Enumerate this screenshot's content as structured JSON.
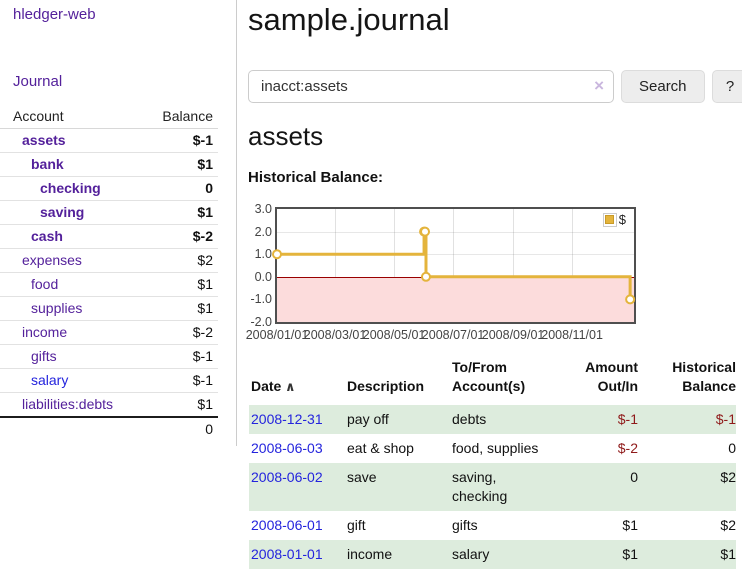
{
  "app": {
    "title": "hledger-web",
    "nav_journal": "Journal"
  },
  "colors": {
    "accent_purple": "#54219b",
    "link_blue": "#2424dd",
    "negative_strong": "#8f1a1a",
    "negative_muted": "#b26565",
    "row_green": "#ddecdd",
    "chart_line": "#e4b43c",
    "chart_negative_fill": "#fcdcdc",
    "zero_line": "#990000"
  },
  "sidebar": {
    "columns": [
      "Account",
      "Balance"
    ],
    "rows": [
      {
        "account": "assets",
        "balance": "$-1",
        "level": 1,
        "bold": true,
        "neg": "strong",
        "link": "purple"
      },
      {
        "account": "bank",
        "balance": "$1",
        "level": 2,
        "bold": true,
        "neg": null,
        "link": "purple"
      },
      {
        "account": "checking",
        "balance": "0",
        "level": 3,
        "bold": true,
        "neg": null,
        "link": "purple"
      },
      {
        "account": "saving",
        "balance": "$1",
        "level": 3,
        "bold": true,
        "neg": null,
        "link": "purple"
      },
      {
        "account": "cash",
        "balance": "$-2",
        "level": 2,
        "bold": true,
        "neg": "strong",
        "link": "purple"
      },
      {
        "account": "expenses",
        "balance": "$2",
        "level": 1,
        "bold": false,
        "neg": null,
        "link": "purple"
      },
      {
        "account": "food",
        "balance": "$1",
        "level": 2,
        "bold": false,
        "neg": null,
        "link": "purple"
      },
      {
        "account": "supplies",
        "balance": "$1",
        "level": 2,
        "bold": false,
        "neg": null,
        "link": "purple"
      },
      {
        "account": "income",
        "balance": "$-2",
        "level": 1,
        "bold": false,
        "neg": "muted",
        "link": "purple"
      },
      {
        "account": "gifts",
        "balance": "$-1",
        "level": 2,
        "bold": false,
        "neg": "muted",
        "link": "purple"
      },
      {
        "account": "salary",
        "balance": "$-1",
        "level": 2,
        "bold": false,
        "neg": "muted",
        "link": "blue"
      },
      {
        "account": "liabilities:debts",
        "balance": "$1",
        "level": 1,
        "bold": false,
        "neg": null,
        "link": "purple"
      }
    ],
    "total": "0"
  },
  "header": {
    "title": "sample.journal"
  },
  "search": {
    "value": "inacct:assets",
    "clear_icon": "×",
    "button_label": "Search",
    "help_label": "?"
  },
  "main": {
    "heading": "assets",
    "chart_label": "Historical Balance:"
  },
  "chart_data": {
    "type": "line",
    "title": "Historical Balance",
    "series": [
      {
        "name": "$",
        "color": "#e4b43c",
        "steps": true,
        "points": [
          [
            "2008-01-01",
            1
          ],
          [
            "2008-06-01",
            2
          ],
          [
            "2008-06-02",
            2
          ],
          [
            "2008-06-03",
            0
          ],
          [
            "2008-12-31",
            -1
          ]
        ]
      }
    ],
    "point_days": [
      0,
      152,
      153,
      154,
      365
    ],
    "x_ticks": [
      "2008/01/01",
      "2008/03/01",
      "2008/05/01",
      "2008/07/01",
      "2008/09/01",
      "2008/11/01"
    ],
    "x_tick_days": [
      0,
      60,
      121,
      182,
      244,
      305
    ],
    "x_domain_days": [
      0,
      369
    ],
    "y_ticks": [
      3.0,
      2.0,
      1.0,
      0.0,
      -1.0,
      -2.0
    ],
    "ylim": [
      -2,
      3
    ],
    "grid": true,
    "legend_position": "top-right",
    "negative_region_shaded": true
  },
  "register": {
    "columns": [
      {
        "label": "Date",
        "sort_icon": "∧",
        "align": "left"
      },
      {
        "label": "Description",
        "align": "left"
      },
      {
        "label": "To/From Account(s)",
        "align": "left"
      },
      {
        "label": "Amount Out/In",
        "align": "right"
      },
      {
        "label": "Historical Balance",
        "align": "right"
      }
    ],
    "rows": [
      {
        "date": "2008-12-31",
        "description": "pay off",
        "accounts": "debts",
        "amount": "$-1",
        "amount_neg": true,
        "balance": "$-1",
        "balance_neg": true,
        "shaded": true
      },
      {
        "date": "2008-06-03",
        "description": "eat & shop",
        "accounts": "food, supplies",
        "amount": "$-2",
        "amount_neg": true,
        "balance": "0",
        "balance_neg": false,
        "shaded": false
      },
      {
        "date": "2008-06-02",
        "description": "save",
        "accounts": "saving, checking",
        "amount": "0",
        "amount_neg": false,
        "balance": "$2",
        "balance_neg": false,
        "shaded": true
      },
      {
        "date": "2008-06-01",
        "description": "gift",
        "accounts": "gifts",
        "amount": "$1",
        "amount_neg": false,
        "balance": "$2",
        "balance_neg": false,
        "shaded": false
      },
      {
        "date": "2008-01-01",
        "description": "income",
        "accounts": "salary",
        "amount": "$1",
        "amount_neg": false,
        "balance": "$1",
        "balance_neg": false,
        "shaded": true
      }
    ]
  }
}
